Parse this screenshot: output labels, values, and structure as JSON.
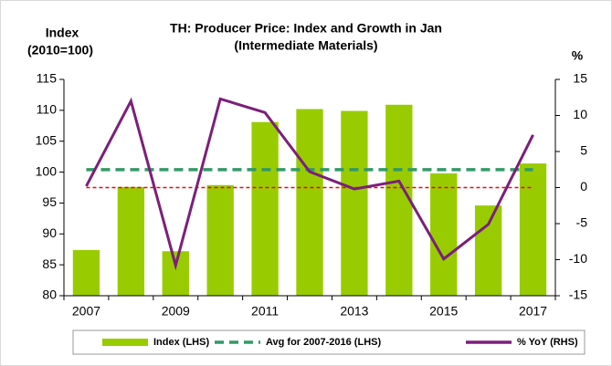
{
  "chart_data": {
    "type": "combo",
    "title": "TH: Producer Price: Index and Growth in Jan",
    "subtitle": "(Intermediate Materials)",
    "ylabel": [
      "Index",
      "(2010=100)"
    ],
    "y2label": "%",
    "categories": [
      "2007",
      null,
      "2009",
      null,
      "2011",
      null,
      "2013",
      null,
      "2015",
      null,
      "2017"
    ],
    "series": [
      {
        "name": "Index (LHS)",
        "type": "bar",
        "color": "#99cc00",
        "axis": "y",
        "values": [
          87.4,
          97.6,
          87.2,
          97.9,
          108.1,
          110.2,
          109.9,
          110.9,
          99.8,
          94.6,
          101.4
        ]
      },
      {
        "name": "Avg for 2007-2016 (LHS)",
        "type": "line",
        "dashed": true,
        "color": "#339966",
        "axis": "y",
        "values": [
          100.4,
          100.4,
          100.4,
          100.4,
          100.4,
          100.4,
          100.4,
          100.4,
          100.4,
          100.4,
          100.4
        ]
      },
      {
        "name": "% YoY (RHS)",
        "type": "line",
        "color": "#7b1f7b",
        "axis": "y2",
        "values": [
          0.2,
          12.0,
          -10.8,
          12.3,
          10.4,
          2.2,
          -0.2,
          0.9,
          -9.9,
          -5.1,
          7.3
        ]
      }
    ],
    "zero_line_color": "#ff0000",
    "ylim": [
      80,
      115
    ],
    "yticks": [
      80,
      85,
      90,
      95,
      100,
      105,
      110,
      115
    ],
    "y2lim": [
      -15,
      15
    ],
    "y2ticks": [
      -15,
      -10,
      -5,
      0,
      5,
      10,
      15
    ],
    "legend": "bottom"
  }
}
